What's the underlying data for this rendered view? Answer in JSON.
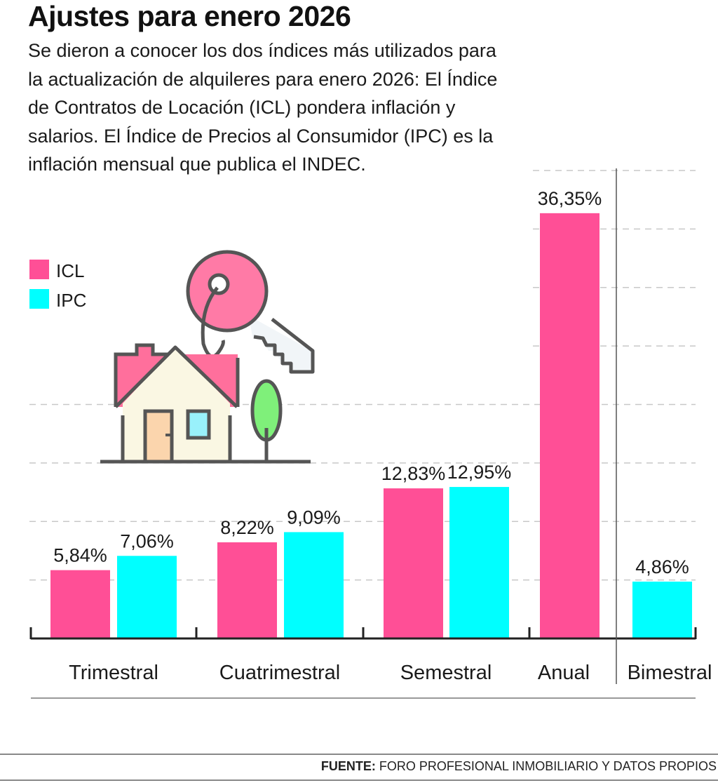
{
  "title": "Ajustes para enero 2026",
  "subtitle": "Se dieron a conocer los dos índices más utilizados para la actualización de alquileres para enero 2026: El Índice de Contratos de Locación (ICL) pondera inflación y salarios. El Índice de Precios al Consumidor (IPC) es la inflación mensual que publica el INDEC.",
  "source": {
    "label": "FUENTE:",
    "text": " FORO PROFESIONAL INMOBILIARIO Y DATOS PROPIOS"
  },
  "illustration": "house-with-key-icon",
  "chart_data": {
    "type": "bar",
    "categories": [
      "Trimestral",
      "Cuatrimestral",
      "Semestral",
      "Anual",
      "Bimestral"
    ],
    "series": [
      {
        "name": "ICL",
        "color": "#ff4f96",
        "values": [
          5.84,
          8.22,
          12.83,
          36.35,
          null
        ],
        "labels": [
          "5,84%",
          "8,22%",
          "12,83%",
          "36,35%",
          null
        ]
      },
      {
        "name": "IPC",
        "color": "#00ffff",
        "values": [
          7.06,
          9.09,
          12.95,
          null,
          4.86
        ],
        "labels": [
          "7,06%",
          "9,09%",
          "12,95%",
          null,
          "4,86%"
        ]
      }
    ],
    "ylim": [
      0,
      40
    ],
    "grid": true,
    "grid_step": 5,
    "legend": "top-left",
    "xlabel": "",
    "ylabel": ""
  }
}
